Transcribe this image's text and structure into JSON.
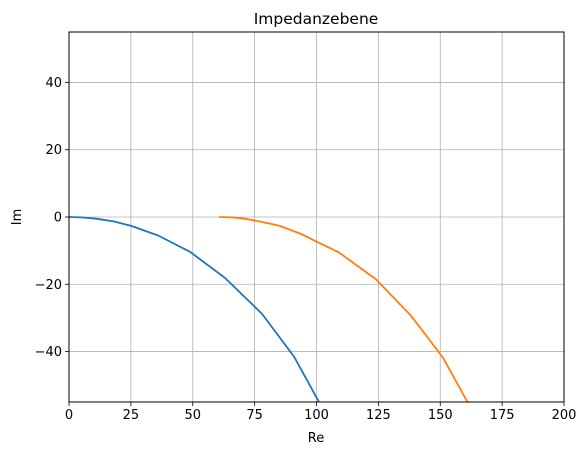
{
  "chart_data": {
    "type": "line",
    "title": "Impedanzebene",
    "xlabel": "Re",
    "ylabel": "Im",
    "xlim": [
      0,
      200
    ],
    "ylim": [
      -55,
      55
    ],
    "xticks": [
      0,
      25,
      50,
      75,
      100,
      125,
      150,
      175,
      200
    ],
    "xtick_labels": [
      "0",
      "25",
      "50",
      "75",
      "100",
      "125",
      "150",
      "175",
      "200"
    ],
    "yticks": [
      -40,
      -20,
      0,
      20,
      40
    ],
    "ytick_labels": [
      "−40",
      "−20",
      "0",
      "20",
      "40"
    ],
    "grid": true,
    "series": [
      {
        "color": "#1f77b4",
        "x": [
          0,
          5,
          11,
          18,
          25,
          36,
          49,
          63,
          78,
          91,
          101,
          103
        ],
        "y": [
          0,
          -0.1,
          -0.5,
          -1.3,
          -2.6,
          -5.5,
          -10.4,
          -18.1,
          -28.8,
          -41.6,
          -55,
          -58
        ]
      },
      {
        "color": "#ff7f0e",
        "x": [
          61,
          66,
          71,
          77,
          85,
          94,
          100,
          109,
          124,
          138,
          151,
          161,
          164
        ],
        "y": [
          0,
          -0.1,
          -0.5,
          -1.3,
          -2.6,
          -5.1,
          -7.3,
          -10.5,
          -18.5,
          -29.2,
          -41.7,
          -55,
          -58
        ]
      }
    ]
  }
}
